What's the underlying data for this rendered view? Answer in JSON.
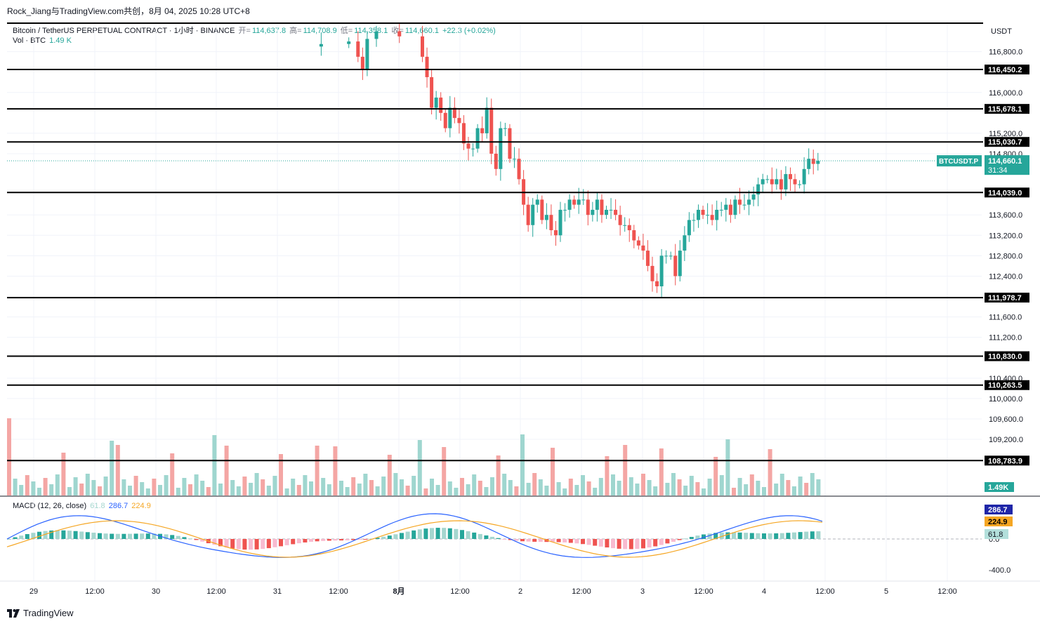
{
  "header": {
    "credit": "Rock_Jiang与TradingView.com共创，8月 04, 2025 10:28 UTC+8",
    "symbol": "Bitcoin / TetherUS PERPETUAL CONTRACT · 1小时 · BINANCE",
    "open_label": "开=",
    "open": "114,637.8",
    "high_label": "高=",
    "high": "114,708.9",
    "low_label": "低=",
    "low": "114,358.1",
    "close_label": "收=",
    "close": "114,660.1",
    "change": "+22.3 (+0.02%)",
    "vol_label": "Vol · BTC",
    "vol_value": "1.49 K"
  },
  "macd_legend": {
    "label": "MACD (12, 26, close)",
    "hist": "61.8",
    "macd": "286.7",
    "signal": "224.9"
  },
  "price_axis": {
    "currency": "USDT",
    "ticks": [
      "116,800.0",
      "116,000.0",
      "115,200.0",
      "114,800.0",
      "113,600.0",
      "113,200.0",
      "112,800.0",
      "112,400.0",
      "111,600.0",
      "111,200.0",
      "110,400.0",
      "110,000.0",
      "109,600.0",
      "109,200.0"
    ],
    "vol_tag": "1.49K"
  },
  "macd_axis": {
    "ticks": [
      "0.0",
      "-400.0"
    ],
    "hist_tag": "61.8",
    "macd_tag": "286.7",
    "signal_tag": "224.9"
  },
  "current_price": {
    "symbol_tag": "BTCUSDT.P",
    "price": "114,660.1",
    "countdown": "31:34"
  },
  "time_axis": [
    "29",
    "12:00",
    "30",
    "12:00",
    "31",
    "12:00",
    "8月",
    "12:00",
    "2",
    "12:00",
    "3",
    "12:00",
    "4",
    "12:00",
    "5",
    "12:00"
  ],
  "brand": "TradingView",
  "colors": {
    "up": "#26a69a",
    "down": "#ef5350",
    "macd": "#2962ff",
    "signal": "#f5a623",
    "grid": "#f0f3fa"
  },
  "chart_data": {
    "type": "candlestick",
    "title": "Bitcoin / TetherUS PERPETUAL CONTRACT · 1小时 · BINANCE",
    "ylim": [
      108100,
      117400
    ],
    "horizontal_levels": [
      116450.2,
      115678.1,
      115030.7,
      114039.0,
      111978.7,
      110830.0,
      110263.5,
      108783.9
    ],
    "last_price": 114660.1,
    "candles_close_path": [
      [
        0,
        116900
      ],
      [
        8,
        116950
      ],
      [
        14,
        117000
      ],
      [
        16,
        116700
      ],
      [
        17,
        116450
      ],
      [
        18,
        117050
      ],
      [
        20,
        117200
      ],
      [
        25,
        117100
      ],
      [
        30,
        116700
      ],
      [
        31,
        116300
      ],
      [
        32,
        115700
      ],
      [
        33,
        115900
      ],
      [
        34,
        115600
      ],
      [
        35,
        115300
      ],
      [
        36,
        115700
      ],
      [
        37,
        115500
      ],
      [
        38,
        115400
      ],
      [
        39,
        115000
      ],
      [
        40,
        114900
      ],
      [
        41,
        114900
      ],
      [
        42,
        115300
      ],
      [
        43,
        115200
      ],
      [
        44,
        115700
      ],
      [
        45,
        114800
      ],
      [
        46,
        114500
      ],
      [
        47,
        115300
      ],
      [
        48,
        115300
      ],
      [
        49,
        114700
      ],
      [
        50,
        114700
      ],
      [
        51,
        114300
      ],
      [
        52,
        113800
      ],
      [
        53,
        113400
      ],
      [
        54,
        113800
      ],
      [
        55,
        113900
      ],
      [
        56,
        113500
      ],
      [
        57,
        113600
      ],
      [
        58,
        113300
      ],
      [
        59,
        113200
      ],
      [
        60,
        113700
      ],
      [
        61,
        113700
      ],
      [
        62,
        113900
      ],
      [
        63,
        113800
      ],
      [
        64,
        113900
      ],
      [
        65,
        113900
      ],
      [
        66,
        113600
      ],
      [
        67,
        113700
      ],
      [
        68,
        113900
      ],
      [
        69,
        113600
      ],
      [
        70,
        113700
      ],
      [
        71,
        113700
      ],
      [
        72,
        113600
      ],
      [
        73,
        113400
      ],
      [
        74,
        113400
      ],
      [
        75,
        113300
      ],
      [
        76,
        113100
      ],
      [
        77,
        113000
      ],
      [
        78,
        112900
      ],
      [
        79,
        112600
      ],
      [
        80,
        112300
      ],
      [
        81,
        112200
      ],
      [
        82,
        112800
      ],
      [
        83,
        112800
      ],
      [
        84,
        112800
      ],
      [
        85,
        112400
      ],
      [
        86,
        112900
      ],
      [
        87,
        113200
      ],
      [
        88,
        113500
      ],
      [
        89,
        113500
      ],
      [
        90,
        113700
      ],
      [
        91,
        113600
      ],
      [
        92,
        113600
      ],
      [
        93,
        113500
      ],
      [
        94,
        113700
      ],
      [
        95,
        113700
      ],
      [
        96,
        113800
      ],
      [
        97,
        113600
      ],
      [
        98,
        113900
      ],
      [
        99,
        113800
      ],
      [
        100,
        113800
      ],
      [
        101,
        113900
      ],
      [
        102,
        114000
      ],
      [
        103,
        114200
      ],
      [
        104,
        114300
      ],
      [
        105,
        114300
      ],
      [
        106,
        114200
      ],
      [
        107,
        114300
      ],
      [
        108,
        114100
      ],
      [
        109,
        114400
      ],
      [
        110,
        114300
      ],
      [
        111,
        114200
      ],
      [
        112,
        114200
      ],
      [
        113,
        114500
      ],
      [
        114,
        114700
      ],
      [
        115,
        114600
      ],
      [
        116,
        114660
      ]
    ],
    "volume": {
      "max_label": "1.49K",
      "bars": [
        12,
        16,
        10,
        8,
        9,
        7,
        6,
        5,
        5,
        6,
        6,
        5,
        6,
        5,
        4,
        5,
        6,
        9,
        8,
        7,
        7,
        6,
        6,
        5,
        6,
        5,
        4,
        4,
        3,
        3,
        4,
        4,
        4,
        5,
        4,
        3,
        4,
        4,
        3,
        3,
        3,
        2,
        2,
        2,
        2,
        2,
        3,
        2,
        2,
        2,
        2
      ]
    },
    "macd": {
      "macd_last": 286.7,
      "signal_last": 224.9,
      "hist_last": 61.8,
      "yticks": [
        0,
        -400
      ]
    }
  }
}
